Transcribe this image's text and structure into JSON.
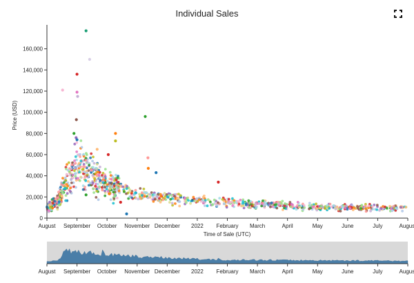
{
  "header": {
    "title": "Individual Sales",
    "fullscreen_icon": "fullscreen-icon"
  },
  "chart_data": {
    "type": "scatter",
    "title": "Individual Sales",
    "xlabel": "Time of Sale (UTC)",
    "ylabel": "Price (USD)",
    "ylim": [
      0,
      180000
    ],
    "yticks": [
      0,
      20000,
      40000,
      60000,
      80000,
      100000,
      120000,
      140000,
      160000
    ],
    "ytick_labels": [
      "0",
      "20,000",
      "40,000",
      "60,000",
      "80,000",
      "100,000",
      "120,000",
      "140,000",
      "160,000"
    ],
    "x_domain_months": [
      0,
      12
    ],
    "xtick_positions": [
      0,
      1,
      2,
      3,
      4,
      5,
      6,
      7,
      8,
      9,
      10,
      11,
      12
    ],
    "xtick_labels": [
      "August",
      "September",
      "October",
      "November",
      "December",
      "2022",
      "February",
      "March",
      "April",
      "May",
      "June",
      "July",
      "August"
    ],
    "points": [
      {
        "x": 1.3,
        "y": 177000,
        "color": "#1a9e74"
      },
      {
        "x": 1.42,
        "y": 150000,
        "color": "#d8cfe6"
      },
      {
        "x": 1.0,
        "y": 136000,
        "color": "#d62728"
      },
      {
        "x": 0.52,
        "y": 121000,
        "color": "#f7b6d2"
      },
      {
        "x": 1.0,
        "y": 119000,
        "color": "#e377c2"
      },
      {
        "x": 1.02,
        "y": 115000,
        "color": "#c5b0d5"
      },
      {
        "x": 3.27,
        "y": 96000,
        "color": "#2ca02c"
      },
      {
        "x": 0.98,
        "y": 93000,
        "color": "#8c564b"
      },
      {
        "x": 2.28,
        "y": 80000,
        "color": "#ff7f0e"
      },
      {
        "x": 0.9,
        "y": 80000,
        "color": "#2ca02c"
      },
      {
        "x": 0.97,
        "y": 76000,
        "color": "#9467bd"
      },
      {
        "x": 1.0,
        "y": 74000,
        "color": "#1f77b4"
      },
      {
        "x": 2.28,
        "y": 73000,
        "color": "#bcbd22"
      },
      {
        "x": 1.67,
        "y": 65000,
        "color": "#ffbb78"
      },
      {
        "x": 3.36,
        "y": 57000,
        "color": "#ff9896"
      },
      {
        "x": 2.04,
        "y": 60000,
        "color": "#d62728"
      },
      {
        "x": 3.63,
        "y": 43000,
        "color": "#1f77b4"
      },
      {
        "x": 3.37,
        "y": 47000,
        "color": "#ff7f0e"
      },
      {
        "x": 5.7,
        "y": 34000,
        "color": "#d62728"
      },
      {
        "x": 2.65,
        "y": 4000,
        "color": "#1f77b4"
      },
      {
        "x": 1.3,
        "y": 22000,
        "color": "#2ca02c"
      },
      {
        "x": 2.45,
        "y": 15000,
        "color": "#d62728"
      },
      {
        "x": 0.6,
        "y": 28000,
        "color": "#17becf"
      }
    ]
  },
  "overview": {
    "xtick_labels": [
      "August",
      "September",
      "October",
      "November",
      "December",
      "2022",
      "February",
      "March",
      "April",
      "May",
      "June",
      "July",
      "August"
    ]
  },
  "colors": {
    "background": "#ffffff",
    "axis": "#333333",
    "overview_fill": "#d9d9d9",
    "overview_area": "#4a7ea8",
    "palette": [
      "#1f77b4",
      "#ff7f0e",
      "#2ca02c",
      "#d62728",
      "#9467bd",
      "#8c564b",
      "#e377c2",
      "#bcbd22",
      "#17becf",
      "#aec7e8",
      "#ffbb78",
      "#98df8a",
      "#ff9896",
      "#c5b0d5",
      "#f7b6d2",
      "#dbdb8d",
      "#9edae5"
    ]
  }
}
